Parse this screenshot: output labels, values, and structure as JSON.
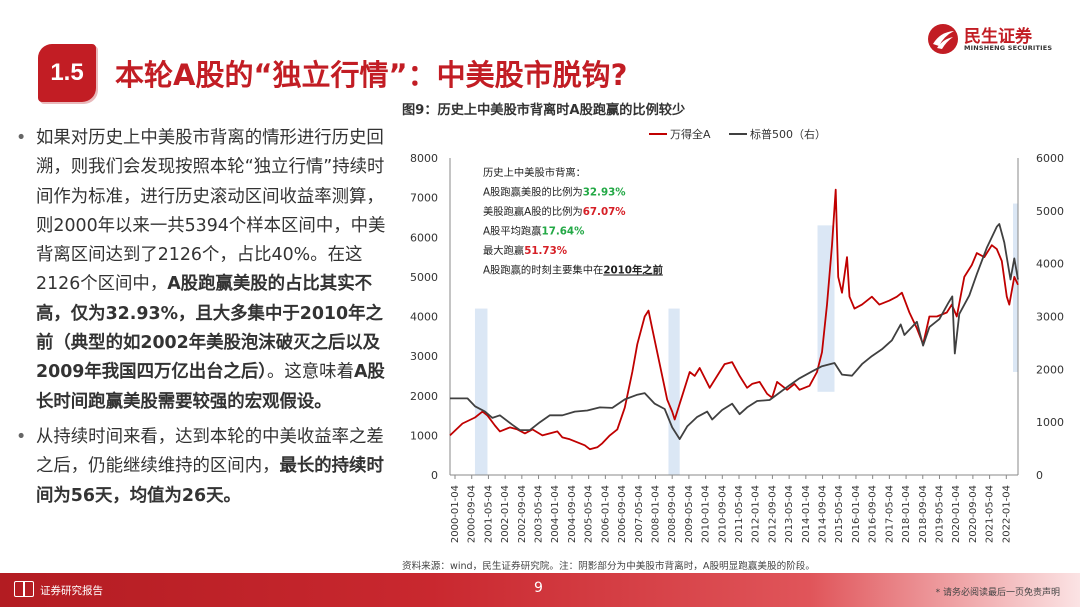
{
  "header": {
    "section_number": "1.5",
    "title": "本轮A股的“独立行情”：中美股市脱钩?",
    "logo_cn": "民生证券",
    "logo_en": "MINSHENG SECURITIES"
  },
  "bullets": [
    {
      "segments": [
        {
          "text": "如果对历史上中美股市背离的情形进行历史回溯，则我们会发现按照本轮“独立行情”持续时间作为标准，进行历史滚动区间收益率测算，则2000年以来一共5394个样本区间中，中美背离区间达到了2126个，占比40%。在这2126个区间中，",
          "bold": false
        },
        {
          "text": "A股跑赢美股的占比其实不高，仅为32.93%，且大多集中于2010年之前（典型的如2002年美股泡沫破灭之后以及2009年我国四万亿出台之后）",
          "bold": true
        },
        {
          "text": "。这意味着",
          "bold": false
        },
        {
          "text": "A股长时间跑赢美股需要较强的宏观假设。",
          "bold": true
        }
      ]
    },
    {
      "segments": [
        {
          "text": "从持续时间来看，达到本轮的中美收益率之差之后，仍能继续维持的区间内，",
          "bold": false
        },
        {
          "text": "最长的持续时间为56天，均值为26天。",
          "bold": true
        }
      ]
    }
  ],
  "figure": {
    "title": "图9：历史上中美股市背离时A股跑赢的比例较少",
    "source": "资料来源：wind，民生证券研究院。注：阴影部分为中美股市背离时，A股明显跑赢美股的阶段。"
  },
  "annotations": [
    {
      "text": "历史上中美股市背离：",
      "highlight": "",
      "color": ""
    },
    {
      "text": "A股跑赢美股的比例为",
      "highlight": "32.93%",
      "color": "#22a845"
    },
    {
      "text": "美股跑赢A股的比例为",
      "highlight": "67.07%",
      "color": "#d61f26"
    },
    {
      "text": "A股平均跑赢",
      "highlight": "17.64%",
      "color": "#22a845"
    },
    {
      "text": "最大跑赢",
      "highlight": "51.73%",
      "color": "#d61f26"
    },
    {
      "text": "A股跑赢的时刻主要集中在",
      "highlight": "2010年之前",
      "color": "#222"
    }
  ],
  "chart_data": {
    "type": "line",
    "legend": [
      "万得全A",
      "标普500（右）"
    ],
    "legend_position": "top-right",
    "grid": false,
    "y_left": {
      "min": 0,
      "max": 8000,
      "ticks": [
        0,
        1000,
        2000,
        3000,
        4000,
        5000,
        6000,
        7000,
        8000
      ]
    },
    "y_right": {
      "min": 0,
      "max": 6000,
      "ticks": [
        0,
        1000,
        2000,
        3000,
        4000,
        5000,
        6000
      ]
    },
    "x_tick_labels": [
      "2000-01-04",
      "2000-09-04",
      "2001-05-04",
      "2002-01-04",
      "2002-09-04",
      "2003-05-04",
      "2004-01-04",
      "2004-09-04",
      "2005-05-04",
      "2006-01-04",
      "2006-09-04",
      "2007-05-04",
      "2008-01-04",
      "2008-09-04",
      "2009-05-04",
      "2010-01-04",
      "2010-09-04",
      "2011-05-04",
      "2012-01-04",
      "2012-09-04",
      "2013-05-04",
      "2014-01-04",
      "2014-09-04",
      "2015-05-04",
      "2016-01-04",
      "2016-09-04",
      "2017-05-04",
      "2018-01-04",
      "2018-09-04",
      "2019-05-04",
      "2020-01-04",
      "2020-09-04",
      "2021-05-04",
      "2022-01-04"
    ],
    "series": [
      {
        "name": "万得全A",
        "axis": "left",
        "color": "#c00000",
        "points": [
          [
            2000.0,
            1000
          ],
          [
            2000.5,
            1300
          ],
          [
            2001.0,
            1450
          ],
          [
            2001.3,
            1600
          ],
          [
            2001.5,
            1500
          ],
          [
            2001.8,
            1250
          ],
          [
            2002.0,
            1100
          ],
          [
            2002.4,
            1200
          ],
          [
            2002.7,
            1150
          ],
          [
            2003.0,
            1050
          ],
          [
            2003.3,
            1150
          ],
          [
            2003.7,
            1000
          ],
          [
            2004.0,
            1050
          ],
          [
            2004.3,
            1100
          ],
          [
            2004.5,
            950
          ],
          [
            2004.8,
            900
          ],
          [
            2005.0,
            850
          ],
          [
            2005.4,
            750
          ],
          [
            2005.6,
            650
          ],
          [
            2005.9,
            700
          ],
          [
            2006.1,
            800
          ],
          [
            2006.4,
            1000
          ],
          [
            2006.7,
            1150
          ],
          [
            2007.0,
            1700
          ],
          [
            2007.3,
            2600
          ],
          [
            2007.5,
            3300
          ],
          [
            2007.8,
            4000
          ],
          [
            2007.95,
            4150
          ],
          [
            2008.1,
            3700
          ],
          [
            2008.3,
            3100
          ],
          [
            2008.5,
            2500
          ],
          [
            2008.7,
            1900
          ],
          [
            2008.9,
            1600
          ],
          [
            2009.0,
            1400
          ],
          [
            2009.3,
            2000
          ],
          [
            2009.6,
            2600
          ],
          [
            2009.8,
            2500
          ],
          [
            2010.0,
            2700
          ],
          [
            2010.4,
            2200
          ],
          [
            2010.8,
            2600
          ],
          [
            2011.0,
            2800
          ],
          [
            2011.3,
            2850
          ],
          [
            2011.6,
            2500
          ],
          [
            2011.9,
            2200
          ],
          [
            2012.1,
            2300
          ],
          [
            2012.4,
            2350
          ],
          [
            2012.7,
            2050
          ],
          [
            2012.9,
            1950
          ],
          [
            2013.1,
            2350
          ],
          [
            2013.5,
            2150
          ],
          [
            2013.8,
            2300
          ],
          [
            2014.0,
            2150
          ],
          [
            2014.4,
            2250
          ],
          [
            2014.7,
            2600
          ],
          [
            2014.9,
            3100
          ],
          [
            2015.1,
            4300
          ],
          [
            2015.3,
            5800
          ],
          [
            2015.45,
            7200
          ],
          [
            2015.55,
            5000
          ],
          [
            2015.7,
            4600
          ],
          [
            2015.9,
            5500
          ],
          [
            2016.0,
            4500
          ],
          [
            2016.2,
            4200
          ],
          [
            2016.5,
            4300
          ],
          [
            2016.9,
            4500
          ],
          [
            2017.2,
            4300
          ],
          [
            2017.6,
            4400
          ],
          [
            2017.9,
            4500
          ],
          [
            2018.1,
            4600
          ],
          [
            2018.4,
            4100
          ],
          [
            2018.7,
            3700
          ],
          [
            2018.95,
            3300
          ],
          [
            2019.2,
            4000
          ],
          [
            2019.5,
            4000
          ],
          [
            2019.9,
            4100
          ],
          [
            2020.1,
            4300
          ],
          [
            2020.3,
            4000
          ],
          [
            2020.6,
            5000
          ],
          [
            2020.9,
            5300
          ],
          [
            2021.1,
            5600
          ],
          [
            2021.4,
            5500
          ],
          [
            2021.7,
            5800
          ],
          [
            2021.9,
            5700
          ],
          [
            2022.1,
            5400
          ],
          [
            2022.3,
            4500
          ],
          [
            2022.4,
            4300
          ],
          [
            2022.6,
            5000
          ],
          [
            2022.75,
            4800
          ]
        ]
      },
      {
        "name": "标普500（右）",
        "axis": "right",
        "color": "#404040",
        "points": [
          [
            2000.0,
            1450
          ],
          [
            2000.7,
            1450
          ],
          [
            2001.0,
            1300
          ],
          [
            2001.4,
            1200
          ],
          [
            2001.7,
            1080
          ],
          [
            2002.0,
            1130
          ],
          [
            2002.5,
            950
          ],
          [
            2002.8,
            850
          ],
          [
            2003.2,
            850
          ],
          [
            2003.6,
            1000
          ],
          [
            2004.0,
            1130
          ],
          [
            2004.5,
            1130
          ],
          [
            2005.0,
            1200
          ],
          [
            2005.5,
            1220
          ],
          [
            2006.0,
            1280
          ],
          [
            2006.5,
            1270
          ],
          [
            2007.0,
            1430
          ],
          [
            2007.5,
            1520
          ],
          [
            2007.8,
            1550
          ],
          [
            2008.2,
            1350
          ],
          [
            2008.6,
            1250
          ],
          [
            2008.9,
            900
          ],
          [
            2009.2,
            680
          ],
          [
            2009.5,
            920
          ],
          [
            2009.9,
            1100
          ],
          [
            2010.3,
            1200
          ],
          [
            2010.5,
            1050
          ],
          [
            2010.9,
            1230
          ],
          [
            2011.3,
            1350
          ],
          [
            2011.6,
            1150
          ],
          [
            2011.9,
            1280
          ],
          [
            2012.3,
            1400
          ],
          [
            2012.8,
            1420
          ],
          [
            2013.2,
            1560
          ],
          [
            2013.6,
            1700
          ],
          [
            2014.0,
            1830
          ],
          [
            2014.5,
            1960
          ],
          [
            2014.9,
            2060
          ],
          [
            2015.4,
            2120
          ],
          [
            2015.7,
            1900
          ],
          [
            2016.1,
            1880
          ],
          [
            2016.5,
            2100
          ],
          [
            2016.9,
            2250
          ],
          [
            2017.3,
            2380
          ],
          [
            2017.7,
            2550
          ],
          [
            2018.05,
            2850
          ],
          [
            2018.2,
            2650
          ],
          [
            2018.7,
            2900
          ],
          [
            2018.95,
            2450
          ],
          [
            2019.2,
            2800
          ],
          [
            2019.6,
            2950
          ],
          [
            2019.95,
            3250
          ],
          [
            2020.12,
            3380
          ],
          [
            2020.22,
            2300
          ],
          [
            2020.4,
            3050
          ],
          [
            2020.8,
            3400
          ],
          [
            2021.1,
            3800
          ],
          [
            2021.5,
            4300
          ],
          [
            2021.9,
            4700
          ],
          [
            2022.0,
            4750
          ],
          [
            2022.2,
            4400
          ],
          [
            2022.45,
            3700
          ],
          [
            2022.6,
            4100
          ],
          [
            2022.75,
            3700
          ]
        ]
      }
    ],
    "shaded_ranges": [
      [
        2001.0,
        2001.5
      ],
      [
        2008.75,
        2009.2
      ],
      [
        2014.72,
        2015.4
      ],
      [
        2022.55,
        2022.75
      ]
    ]
  },
  "footer": {
    "label": "证券研究报告",
    "page": "9",
    "disclaimer": "* 请务必阅读最后一页免责声明"
  }
}
